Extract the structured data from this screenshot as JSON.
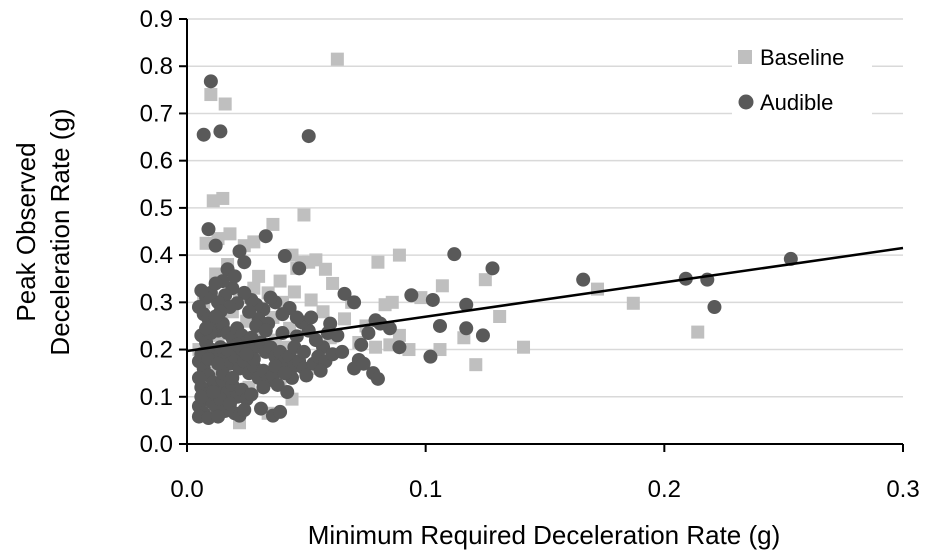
{
  "chart_data": {
    "type": "scatter",
    "title": "",
    "xlabel": "Minimum Required Deceleration Rate (g)",
    "ylabel_lines": [
      "Peak Observed",
      "Deceleration Rate (g)"
    ],
    "xlim": [
      0,
      0.3
    ],
    "ylim": [
      0,
      0.9
    ],
    "x_ticks": [
      "0.0",
      "0.1",
      "0.2",
      "0.3"
    ],
    "y_ticks": [
      "0.0",
      "0.1",
      "0.2",
      "0.3",
      "0.4",
      "0.5",
      "0.6",
      "0.7",
      "0.8",
      "0.9"
    ],
    "grid": "horizontal",
    "legend_position": "top-right",
    "colors": {
      "baseline": "#bfbfbf",
      "audible": "#595959",
      "trend": "#000000",
      "grid": "#d9d9d9"
    },
    "series": [
      {
        "name": "Baseline",
        "marker": "square",
        "points": [
          [
            0.063,
            0.815
          ],
          [
            0.01,
            0.74
          ],
          [
            0.016,
            0.72
          ],
          [
            0.015,
            0.52
          ],
          [
            0.011,
            0.515
          ],
          [
            0.049,
            0.485
          ],
          [
            0.036,
            0.465
          ],
          [
            0.018,
            0.445
          ],
          [
            0.013,
            0.435
          ],
          [
            0.008,
            0.425
          ],
          [
            0.024,
            0.42
          ],
          [
            0.028,
            0.428
          ],
          [
            0.044,
            0.4
          ],
          [
            0.048,
            0.385
          ],
          [
            0.051,
            0.385
          ],
          [
            0.054,
            0.39
          ],
          [
            0.046,
            0.372
          ],
          [
            0.058,
            0.37
          ],
          [
            0.03,
            0.355
          ],
          [
            0.039,
            0.345
          ],
          [
            0.061,
            0.34
          ],
          [
            0.08,
            0.385
          ],
          [
            0.089,
            0.4
          ],
          [
            0.107,
            0.335
          ],
          [
            0.125,
            0.348
          ],
          [
            0.131,
            0.27
          ],
          [
            0.141,
            0.205
          ],
          [
            0.121,
            0.168
          ],
          [
            0.116,
            0.225
          ],
          [
            0.106,
            0.2
          ],
          [
            0.098,
            0.31
          ],
          [
            0.086,
            0.3
          ],
          [
            0.083,
            0.295
          ],
          [
            0.069,
            0.3
          ],
          [
            0.075,
            0.25
          ],
          [
            0.089,
            0.23
          ],
          [
            0.093,
            0.2
          ],
          [
            0.079,
            0.205
          ],
          [
            0.066,
            0.265
          ],
          [
            0.057,
            0.28
          ],
          [
            0.052,
            0.305
          ],
          [
            0.045,
            0.322
          ],
          [
            0.04,
            0.3
          ],
          [
            0.034,
            0.32
          ],
          [
            0.028,
            0.33
          ],
          [
            0.022,
            0.31
          ],
          [
            0.019,
            0.28
          ],
          [
            0.025,
            0.26
          ],
          [
            0.031,
            0.24
          ],
          [
            0.037,
            0.22
          ],
          [
            0.042,
            0.205
          ],
          [
            0.047,
            0.18
          ],
          [
            0.052,
            0.16
          ],
          [
            0.032,
            0.15
          ],
          [
            0.026,
            0.12
          ],
          [
            0.02,
            0.1
          ],
          [
            0.014,
            0.085
          ],
          [
            0.009,
            0.07
          ],
          [
            0.022,
            0.045
          ],
          [
            0.034,
            0.065
          ],
          [
            0.044,
            0.095
          ],
          [
            0.172,
            0.328
          ],
          [
            0.187,
            0.298
          ],
          [
            0.214,
            0.237
          ],
          [
            0.017,
            0.38
          ],
          [
            0.012,
            0.36
          ],
          [
            0.007,
            0.3
          ],
          [
            0.036,
            0.268
          ],
          [
            0.043,
            0.245
          ],
          [
            0.06,
            0.225
          ],
          [
            0.072,
            0.215
          ],
          [
            0.085,
            0.21
          ],
          [
            0.016,
            0.185
          ],
          [
            0.011,
            0.15
          ],
          [
            0.028,
            0.195
          ],
          [
            0.005,
            0.2
          ],
          [
            0.05,
            0.25
          ],
          [
            0.023,
            0.16
          ],
          [
            0.039,
            0.13
          ],
          [
            0.013,
            0.23
          ]
        ]
      },
      {
        "name": "Audible",
        "marker": "circle",
        "points": [
          [
            0.01,
            0.768
          ],
          [
            0.007,
            0.655
          ],
          [
            0.014,
            0.662
          ],
          [
            0.051,
            0.652
          ],
          [
            0.009,
            0.455
          ],
          [
            0.033,
            0.44
          ],
          [
            0.012,
            0.42
          ],
          [
            0.022,
            0.408
          ],
          [
            0.041,
            0.398
          ],
          [
            0.047,
            0.372
          ],
          [
            0.024,
            0.385
          ],
          [
            0.017,
            0.37
          ],
          [
            0.112,
            0.402
          ],
          [
            0.128,
            0.372
          ],
          [
            0.166,
            0.348
          ],
          [
            0.209,
            0.35
          ],
          [
            0.218,
            0.348
          ],
          [
            0.221,
            0.29
          ],
          [
            0.253,
            0.392
          ],
          [
            0.066,
            0.318
          ],
          [
            0.07,
            0.3
          ],
          [
            0.094,
            0.315
          ],
          [
            0.103,
            0.305
          ],
          [
            0.117,
            0.295
          ],
          [
            0.124,
            0.23
          ],
          [
            0.117,
            0.245
          ],
          [
            0.106,
            0.25
          ],
          [
            0.102,
            0.185
          ],
          [
            0.089,
            0.205
          ],
          [
            0.085,
            0.245
          ],
          [
            0.081,
            0.255
          ],
          [
            0.079,
            0.262
          ],
          [
            0.076,
            0.235
          ],
          [
            0.073,
            0.21
          ],
          [
            0.072,
            0.178
          ],
          [
            0.07,
            0.16
          ],
          [
            0.074,
            0.17
          ],
          [
            0.078,
            0.15
          ],
          [
            0.08,
            0.138
          ],
          [
            0.063,
            0.23
          ],
          [
            0.059,
            0.235
          ],
          [
            0.057,
            0.205
          ],
          [
            0.054,
            0.22
          ],
          [
            0.051,
            0.24
          ],
          [
            0.048,
            0.258
          ],
          [
            0.046,
            0.268
          ],
          [
            0.043,
            0.288
          ],
          [
            0.04,
            0.275
          ],
          [
            0.037,
            0.3
          ],
          [
            0.035,
            0.31
          ],
          [
            0.032,
            0.285
          ],
          [
            0.029,
            0.295
          ],
          [
            0.027,
            0.305
          ],
          [
            0.024,
            0.32
          ],
          [
            0.021,
            0.298
          ],
          [
            0.019,
            0.33
          ],
          [
            0.016,
            0.315
          ],
          [
            0.013,
            0.3
          ],
          [
            0.01,
            0.32
          ],
          [
            0.008,
            0.31
          ],
          [
            0.006,
            0.325
          ],
          [
            0.005,
            0.29
          ],
          [
            0.007,
            0.275
          ],
          [
            0.009,
            0.265
          ],
          [
            0.011,
            0.25
          ],
          [
            0.013,
            0.24
          ],
          [
            0.015,
            0.255
          ],
          [
            0.017,
            0.235
          ],
          [
            0.019,
            0.225
          ],
          [
            0.021,
            0.245
          ],
          [
            0.023,
            0.23
          ],
          [
            0.025,
            0.215
          ],
          [
            0.027,
            0.225
          ],
          [
            0.029,
            0.205
          ],
          [
            0.031,
            0.215
          ],
          [
            0.033,
            0.195
          ],
          [
            0.035,
            0.205
          ],
          [
            0.037,
            0.185
          ],
          [
            0.039,
            0.195
          ],
          [
            0.041,
            0.175
          ],
          [
            0.043,
            0.185
          ],
          [
            0.045,
            0.165
          ],
          [
            0.047,
            0.175
          ],
          [
            0.049,
            0.16
          ],
          [
            0.053,
            0.17
          ],
          [
            0.055,
            0.185
          ],
          [
            0.058,
            0.175
          ],
          [
            0.061,
            0.19
          ],
          [
            0.065,
            0.195
          ],
          [
            0.006,
            0.23
          ],
          [
            0.008,
            0.215
          ],
          [
            0.01,
            0.2
          ],
          [
            0.012,
            0.19
          ],
          [
            0.014,
            0.205
          ],
          [
            0.016,
            0.18
          ],
          [
            0.018,
            0.17
          ],
          [
            0.02,
            0.185
          ],
          [
            0.022,
            0.16
          ],
          [
            0.024,
            0.175
          ],
          [
            0.026,
            0.15
          ],
          [
            0.028,
            0.165
          ],
          [
            0.03,
            0.14
          ],
          [
            0.032,
            0.155
          ],
          [
            0.034,
            0.135
          ],
          [
            0.036,
            0.145
          ],
          [
            0.038,
            0.125
          ],
          [
            0.005,
            0.175
          ],
          [
            0.007,
            0.16
          ],
          [
            0.009,
            0.145
          ],
          [
            0.011,
            0.13
          ],
          [
            0.013,
            0.12
          ],
          [
            0.015,
            0.135
          ],
          [
            0.017,
            0.11
          ],
          [
            0.019,
            0.125
          ],
          [
            0.021,
            0.1
          ],
          [
            0.023,
            0.115
          ],
          [
            0.025,
            0.095
          ],
          [
            0.027,
            0.105
          ],
          [
            0.006,
            0.12
          ],
          [
            0.008,
            0.105
          ],
          [
            0.01,
            0.09
          ],
          [
            0.012,
            0.08
          ],
          [
            0.014,
            0.095
          ],
          [
            0.016,
            0.07
          ],
          [
            0.018,
            0.085
          ],
          [
            0.02,
            0.065
          ],
          [
            0.005,
            0.08
          ],
          [
            0.007,
            0.065
          ],
          [
            0.005,
            0.058
          ],
          [
            0.009,
            0.055
          ],
          [
            0.013,
            0.058
          ],
          [
            0.022,
            0.06
          ],
          [
            0.024,
            0.072
          ],
          [
            0.031,
            0.075
          ],
          [
            0.036,
            0.06
          ],
          [
            0.039,
            0.068
          ],
          [
            0.042,
            0.11
          ],
          [
            0.044,
            0.14
          ],
          [
            0.05,
            0.145
          ],
          [
            0.056,
            0.155
          ],
          [
            0.046,
            0.228
          ],
          [
            0.052,
            0.268
          ],
          [
            0.06,
            0.255
          ],
          [
            0.04,
            0.235
          ],
          [
            0.034,
            0.255
          ],
          [
            0.03,
            0.265
          ],
          [
            0.026,
            0.28
          ],
          [
            0.018,
            0.29
          ],
          [
            0.014,
            0.28
          ],
          [
            0.012,
            0.27
          ],
          [
            0.01,
            0.235
          ],
          [
            0.008,
            0.245
          ],
          [
            0.006,
            0.19
          ],
          [
            0.005,
            0.14
          ],
          [
            0.006,
            0.1
          ],
          [
            0.011,
            0.11
          ],
          [
            0.015,
            0.15
          ],
          [
            0.019,
            0.14
          ],
          [
            0.023,
            0.2
          ],
          [
            0.028,
            0.18
          ],
          [
            0.032,
            0.12
          ],
          [
            0.037,
            0.165
          ],
          [
            0.041,
            0.15
          ],
          [
            0.045,
            0.205
          ],
          [
            0.049,
            0.195
          ],
          [
            0.009,
            0.18
          ],
          [
            0.013,
            0.17
          ],
          [
            0.017,
            0.2
          ],
          [
            0.021,
            0.21
          ],
          [
            0.025,
            0.19
          ],
          [
            0.029,
            0.25
          ],
          [
            0.033,
            0.24
          ],
          [
            0.015,
            0.345
          ],
          [
            0.02,
            0.355
          ],
          [
            0.012,
            0.34
          ]
        ]
      }
    ],
    "trendline": {
      "x": [
        0.0,
        0.3
      ],
      "y": [
        0.197,
        0.415
      ]
    }
  }
}
